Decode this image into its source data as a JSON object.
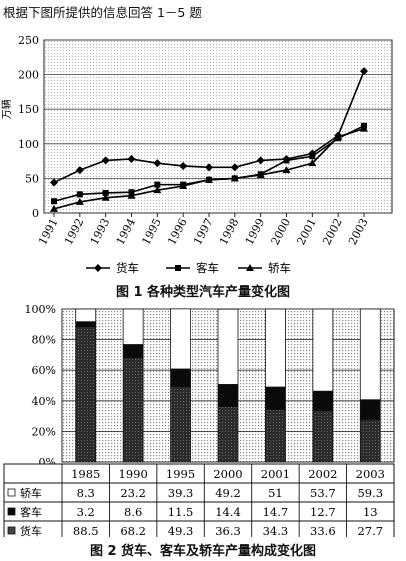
{
  "heading": "根据下图所提供的信息回答 1－5 题",
  "chart_data": [
    {
      "type": "line",
      "figure_caption": "图 1   各种类型汽车产量变化图",
      "x": [
        "1991",
        "1992",
        "1993",
        "1994",
        "1995",
        "1996",
        "1997",
        "1998",
        "1999",
        "2000",
        "2001",
        "2002",
        "2003"
      ],
      "ylabel": "万辆",
      "ylim": [
        0,
        250
      ],
      "yticks": [
        0,
        50,
        100,
        150,
        200,
        250
      ],
      "grid": true,
      "legend_position": "bottom",
      "series": [
        {
          "name": "货车",
          "marker": "diamond",
          "values": [
            44,
            62,
            76,
            78,
            72,
            68,
            66,
            66,
            76,
            78,
            86,
            112,
            205
          ]
        },
        {
          "name": "客车",
          "marker": "square",
          "values": [
            17,
            27,
            29,
            30,
            41,
            41,
            48,
            50,
            56,
            76,
            82,
            108,
            126
          ]
        },
        {
          "name": "轿车",
          "marker": "triangle",
          "values": [
            6,
            16,
            22,
            25,
            33,
            39,
            48,
            50,
            55,
            62,
            72,
            110,
            122
          ]
        }
      ]
    },
    {
      "type": "bar",
      "stacked": true,
      "figure_caption": "图 2   货车、客车及轿车产量构成变化图",
      "categories": [
        "1985",
        "1990",
        "1995",
        "2000",
        "2001",
        "2002",
        "2003"
      ],
      "ylim": [
        0,
        100
      ],
      "yticks": [
        "0%",
        "20%",
        "40%",
        "60%",
        "80%",
        "100%"
      ],
      "series": [
        {
          "name": "货车",
          "values": [
            "88.5",
            "68.2",
            "49.3",
            "36.3",
            "34.3",
            "33.6",
            "27.7"
          ],
          "color": "#3a3a3a"
        },
        {
          "name": "客车",
          "values": [
            "3.2",
            "8.6",
            "11.5",
            "14.4",
            "14.7",
            "12.7",
            "13"
          ],
          "color": "#0a0a0a"
        },
        {
          "name": "轿车",
          "values": [
            "8.3",
            "23.2",
            "39.3",
            "49.2",
            "51",
            "53.7",
            "59.3"
          ],
          "color": "#ffffff"
        }
      ]
    }
  ]
}
